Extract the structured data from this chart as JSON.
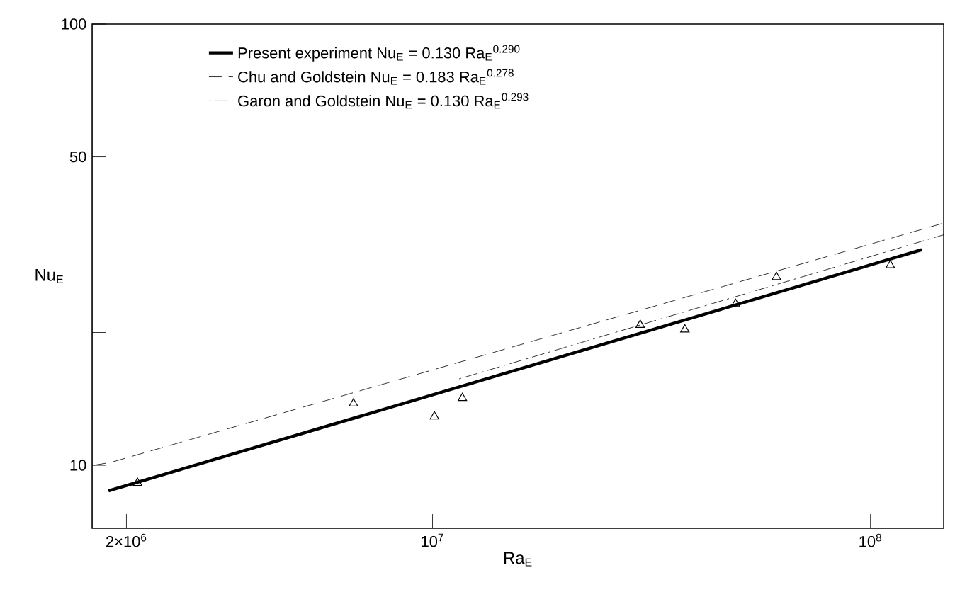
{
  "chart_data": {
    "type": "line",
    "xlabel": "Ra$_{E}$",
    "ylabel": "Nu$_{E}$",
    "log": "xy",
    "xlim": [
      1670000,
      147000000
    ],
    "ylim": [
      7.2,
      100
    ],
    "xticks": [
      {
        "value": 2000000,
        "label": "2×10$^{6}$"
      },
      {
        "value": 10000000,
        "label": "10$^{7}$"
      },
      {
        "value": 100000000,
        "label": "10$^{8}$"
      }
    ],
    "yticks": [
      10,
      {
        "value": 20,
        "label": null
      },
      50,
      100
    ],
    "grid": false,
    "legend": "top",
    "series": [
      {
        "name": "Present experiment   Nu$_{E}$ = 0.130 Ra$_{E}$$^{0.290}$",
        "color": "#000000",
        "line_style": "solid",
        "marker": "none",
        "x": [
          1820000,
          131000000
        ],
        "values": [
          8.75,
          30.8
        ]
      },
      {
        "name": "Chu and Goldstein   Nu$_{E}$ = 0.183 Ra$_{E}$$^{0.278}$",
        "color": "#000000",
        "line_style": "dashed",
        "marker": "none",
        "x": [
          1680000,
          1840000,
          147000000
        ],
        "values": [
          10.0,
          10.15,
          35.4
        ]
      },
      {
        "name": "Garon and Goldstein   Nu$_{E}$ = 0.130 Ra$_{E}$$^{0.293}$",
        "color": "#000000",
        "line_style": "dashdot",
        "marker": "none",
        "x": [
          11500000,
          147000000
        ],
        "values": [
          15.7,
          33.3
        ]
      },
      {
        "color": "#000000",
        "type": "scatter",
        "marker": "triangle",
        "x": [
          2120000,
          6600000,
          10100000,
          11700000,
          29800000,
          37700000,
          49200000,
          61000000,
          111000000
        ],
        "values": [
          9.12,
          13.8,
          12.9,
          14.2,
          20.8,
          20.3,
          23.2,
          26.7,
          28.4
        ]
      }
    ]
  }
}
